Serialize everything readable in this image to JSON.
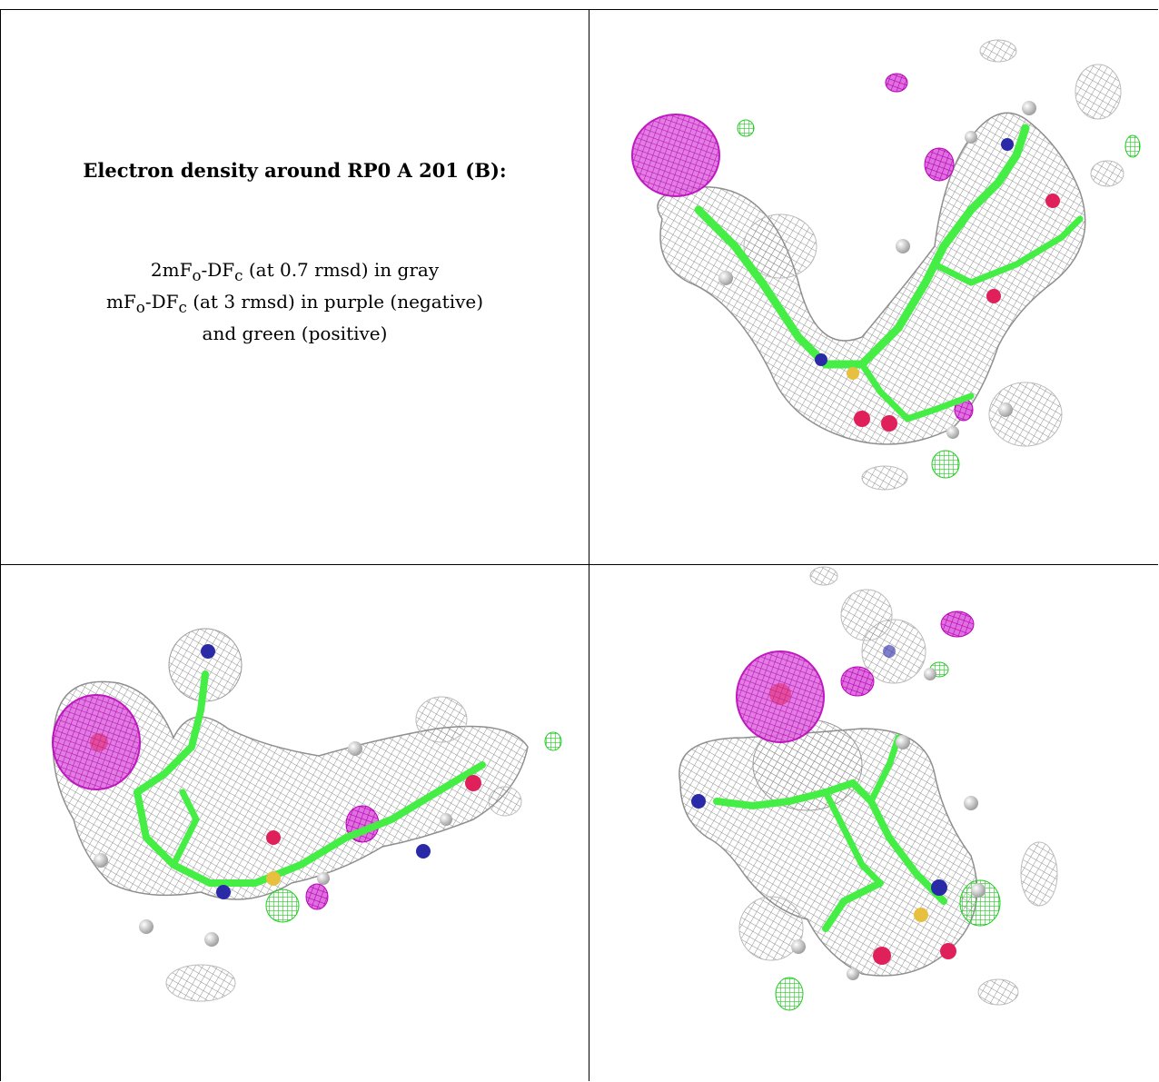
{
  "caption": {
    "title": "Electron density around RP0 A 201 (B):",
    "line1_main": "2mF",
    "line1_sub_o": "o",
    "line1_mid": "-DF",
    "line1_sub_c": "c",
    "line1_rest": " (at 0.7 rmsd) in gray",
    "line2_main": "mF",
    "line2_sub_o": "o",
    "line2_mid": "-DF",
    "line2_sub_c": "c",
    "line2_rest": " (at 3 rmsd) in purple (negative)",
    "line3": "and green (positive)"
  },
  "colors": {
    "mesh_gray": "#9a9a9a",
    "negative_purple": "#cc00cc",
    "positive_green": "#33ee33",
    "carbon": "#44ee44",
    "nitrogen": "#2a2aa8",
    "oxygen": "#e0205a",
    "sulfur": "#e8c040",
    "hydrogen": "#e6e6e6"
  },
  "panels": [
    {
      "name": "view-1",
      "icon": "electron-density-mesh"
    },
    {
      "name": "view-2",
      "icon": "electron-density-mesh"
    },
    {
      "name": "view-3",
      "icon": "electron-density-mesh"
    }
  ]
}
